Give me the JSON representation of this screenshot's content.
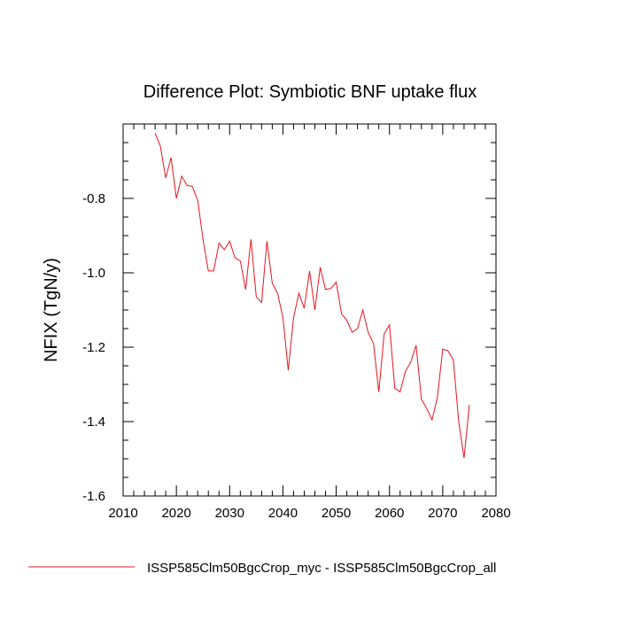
{
  "chart_data": {
    "type": "line",
    "title": "Difference Plot: Symbiotic BNF uptake flux",
    "xlabel": "",
    "ylabel": "NFIX  (TgN/y)",
    "xlim": [
      2010,
      2080
    ],
    "ylim": [
      -1.6,
      -0.6
    ],
    "x_ticks": [
      2010,
      2020,
      2030,
      2040,
      2050,
      2060,
      2070,
      2080
    ],
    "y_ticks": [
      -1.6,
      -1.4,
      -1.2,
      -1.0,
      -0.8
    ],
    "x_tick_labels": [
      "2010",
      "2020",
      "2030",
      "2040",
      "2050",
      "2060",
      "2070",
      "2080"
    ],
    "y_tick_labels": [
      "-1.6",
      "-1.4",
      "-1.2",
      "-1.0",
      "-0.8"
    ],
    "grid": false,
    "legend_position": "bottom",
    "series": [
      {
        "name": "ISSP585Clm50BgcCrop_myc - ISSP585Clm50BgcCrop_all",
        "color": "#e8141c",
        "x": [
          2016,
          2017,
          2018,
          2019,
          2020,
          2021,
          2022,
          2023,
          2024,
          2025,
          2026,
          2027,
          2028,
          2029,
          2030,
          2031,
          2032,
          2033,
          2034,
          2035,
          2036,
          2037,
          2038,
          2039,
          2040,
          2041,
          2042,
          2043,
          2044,
          2045,
          2046,
          2047,
          2048,
          2049,
          2050,
          2051,
          2052,
          2053,
          2054,
          2055,
          2056,
          2057,
          2058,
          2059,
          2060,
          2061,
          2062,
          2063,
          2064,
          2065,
          2066,
          2067,
          2068,
          2069,
          2070,
          2071,
          2072,
          2073,
          2074,
          2075
        ],
        "values": [
          -0.625,
          -0.66,
          -0.745,
          -0.69,
          -0.8,
          -0.74,
          -0.765,
          -0.768,
          -0.805,
          -0.91,
          -0.995,
          -0.995,
          -0.92,
          -0.938,
          -0.915,
          -0.96,
          -0.968,
          -1.045,
          -0.91,
          -1.065,
          -1.08,
          -0.915,
          -1.028,
          -1.055,
          -1.12,
          -1.262,
          -1.12,
          -1.055,
          -1.095,
          -0.995,
          -1.1,
          -0.985,
          -1.045,
          -1.042,
          -1.025,
          -1.11,
          -1.128,
          -1.16,
          -1.15,
          -1.1,
          -1.16,
          -1.19,
          -1.32,
          -1.165,
          -1.14,
          -1.31,
          -1.32,
          -1.265,
          -1.24,
          -1.195,
          -1.34,
          -1.365,
          -1.395,
          -1.335,
          -1.205,
          -1.21,
          -1.235,
          -1.4,
          -1.498,
          -1.355
        ]
      }
    ]
  }
}
